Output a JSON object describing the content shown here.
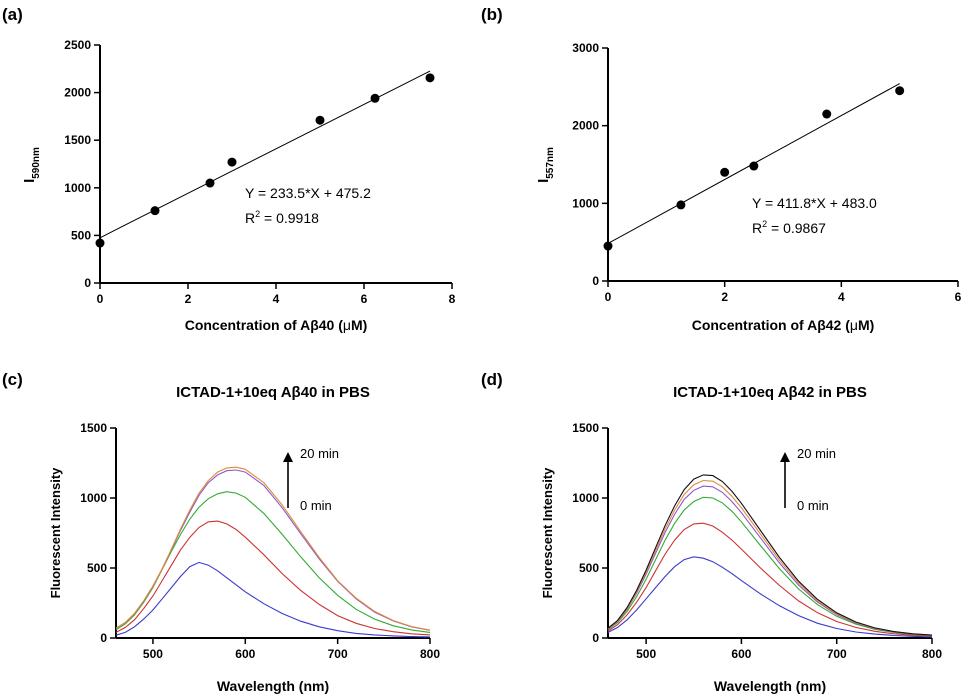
{
  "chart_data": [
    {
      "panel": "(a)",
      "type": "scatter",
      "title": "",
      "xlabel_prefix": "Concentration of Aβ40 (",
      "xlabel_mu": "μ",
      "xlabel_suffix": "M)",
      "ylabel_main": "I",
      "ylabel_sub": "590nm",
      "xlim": [
        0,
        8
      ],
      "ylim": [
        0,
        2500
      ],
      "xticks": [
        0,
        2,
        4,
        6,
        8
      ],
      "yticks": [
        0,
        500,
        1000,
        1500,
        2000,
        2500
      ],
      "points": [
        [
          0,
          420
        ],
        [
          1.25,
          760
        ],
        [
          2.5,
          1050
        ],
        [
          3,
          1270
        ],
        [
          5,
          1710
        ],
        [
          6.25,
          1940
        ],
        [
          7.5,
          2155
        ]
      ],
      "fit": {
        "slope": 233.5,
        "intercept": 475.2,
        "x_range": [
          0,
          7.5
        ]
      },
      "equation": "Y = 233.5*X + 475.2",
      "r2_prefix": "R",
      "r2_sup": "2",
      "r2_value": " = 0.9918",
      "colors": {
        "line": "#000000",
        "points": "#000000"
      }
    },
    {
      "panel": "(b)",
      "type": "scatter",
      "title": "",
      "xlabel_prefix": "Concentration of Aβ42 (",
      "xlabel_mu": "μ",
      "xlabel_suffix": "M)",
      "ylabel_main": "I",
      "ylabel_sub": "557nm",
      "xlim": [
        0,
        6
      ],
      "ylim": [
        0,
        3000
      ],
      "xticks": [
        0,
        2,
        4,
        6
      ],
      "yticks": [
        0,
        1000,
        2000,
        3000
      ],
      "points": [
        [
          0,
          450
        ],
        [
          1.25,
          980
        ],
        [
          2,
          1400
        ],
        [
          2.5,
          1480
        ],
        [
          3.75,
          2150
        ],
        [
          5,
          2450
        ]
      ],
      "fit": {
        "slope": 411.8,
        "intercept": 483.0,
        "x_range": [
          0,
          5
        ]
      },
      "equation": "Y = 411.8*X + 483.0",
      "r2_prefix": "R",
      "r2_sup": "2",
      "r2_value": " = 0.9867",
      "colors": {
        "line": "#000000",
        "points": "#000000"
      }
    },
    {
      "panel": "(c)",
      "type": "line",
      "title": "ICTAD-1+10eq Aβ40 in PBS",
      "xlabel": "Wavelength (nm)",
      "ylabel": "Fluorescent Intensity",
      "xlim": [
        460,
        800
      ],
      "ylim": [
        0,
        1500
      ],
      "xticks": [
        500,
        600,
        700,
        800
      ],
      "yticks": [
        0,
        500,
        1000,
        1500
      ],
      "arrow_top_label": "20 min",
      "arrow_bottom_label": "0 min",
      "series": [
        {
          "color": "#3a3acc",
          "x": [
            460,
            470,
            480,
            490,
            500,
            510,
            520,
            530,
            540,
            550,
            560,
            570,
            580,
            590,
            600,
            620,
            640,
            660,
            680,
            700,
            720,
            740,
            760,
            780,
            800
          ],
          "values": [
            20,
            40,
            80,
            135,
            200,
            280,
            360,
            440,
            510,
            540,
            520,
            480,
            430,
            380,
            330,
            245,
            175,
            120,
            80,
            52,
            33,
            22,
            15,
            10,
            8
          ]
        },
        {
          "color": "#cc3333",
          "x": [
            460,
            470,
            480,
            490,
            500,
            510,
            520,
            530,
            540,
            550,
            560,
            570,
            580,
            590,
            600,
            620,
            640,
            660,
            680,
            700,
            720,
            740,
            760,
            780,
            800
          ],
          "values": [
            40,
            75,
            130,
            210,
            300,
            410,
            520,
            630,
            720,
            790,
            830,
            835,
            815,
            775,
            720,
            595,
            460,
            340,
            240,
            160,
            105,
            68,
            45,
            30,
            22
          ]
        },
        {
          "color": "#33aa33",
          "x": [
            460,
            470,
            480,
            490,
            500,
            510,
            520,
            530,
            540,
            550,
            560,
            570,
            580,
            590,
            600,
            620,
            640,
            660,
            680,
            700,
            720,
            740,
            760,
            780,
            800
          ],
          "values": [
            60,
            100,
            165,
            255,
            360,
            490,
            620,
            740,
            850,
            935,
            995,
            1030,
            1045,
            1035,
            1005,
            890,
            740,
            580,
            430,
            305,
            205,
            135,
            88,
            58,
            40
          ]
        },
        {
          "color": "#8a5acd",
          "x": [
            460,
            470,
            480,
            490,
            500,
            510,
            520,
            530,
            540,
            550,
            560,
            570,
            580,
            590,
            600,
            620,
            640,
            660,
            680,
            700,
            720,
            740,
            760,
            780,
            800
          ],
          "values": [
            70,
            110,
            175,
            265,
            370,
            495,
            630,
            770,
            900,
            1020,
            1110,
            1165,
            1195,
            1200,
            1185,
            1090,
            930,
            745,
            565,
            405,
            280,
            185,
            122,
            80,
            55
          ]
        },
        {
          "color": "#e08a3a",
          "x": [
            460,
            470,
            480,
            490,
            500,
            510,
            520,
            530,
            540,
            550,
            560,
            570,
            580,
            590,
            600,
            620,
            640,
            660,
            680,
            700,
            720,
            740,
            760,
            780,
            800
          ],
          "values": [
            70,
            110,
            175,
            265,
            370,
            495,
            635,
            780,
            915,
            1035,
            1125,
            1185,
            1215,
            1220,
            1205,
            1110,
            950,
            760,
            575,
            410,
            285,
            190,
            125,
            82,
            56
          ]
        }
      ]
    },
    {
      "panel": "(d)",
      "type": "line",
      "title": "ICTAD-1+10eq Aβ42 in PBS",
      "xlabel": "Wavelength (nm)",
      "ylabel": "Fluorescent Intensity",
      "xlim": [
        460,
        800
      ],
      "ylim": [
        0,
        1500
      ],
      "xticks": [
        500,
        600,
        700,
        800
      ],
      "yticks": [
        0,
        500,
        1000,
        1500
      ],
      "arrow_top_label": "20 min",
      "arrow_bottom_label": "0 min",
      "series": [
        {
          "color": "#3a3acc",
          "x": [
            460,
            470,
            480,
            490,
            500,
            510,
            520,
            530,
            540,
            550,
            560,
            570,
            580,
            590,
            600,
            620,
            640,
            660,
            680,
            700,
            720,
            740,
            760,
            780,
            800
          ],
          "values": [
            40,
            75,
            130,
            200,
            280,
            360,
            440,
            510,
            560,
            580,
            570,
            545,
            505,
            460,
            410,
            315,
            230,
            160,
            105,
            68,
            43,
            28,
            18,
            12,
            8
          ]
        },
        {
          "color": "#cc3333",
          "x": [
            460,
            470,
            480,
            490,
            500,
            510,
            520,
            530,
            540,
            550,
            560,
            570,
            580,
            590,
            600,
            620,
            640,
            660,
            680,
            700,
            720,
            740,
            760,
            780,
            800
          ],
          "values": [
            50,
            95,
            165,
            255,
            360,
            480,
            600,
            700,
            775,
            815,
            820,
            800,
            755,
            700,
            635,
            500,
            375,
            265,
            180,
            118,
            76,
            48,
            30,
            20,
            14
          ]
        },
        {
          "color": "#33aa33",
          "x": [
            460,
            470,
            480,
            490,
            500,
            510,
            520,
            530,
            540,
            550,
            560,
            570,
            580,
            590,
            600,
            620,
            640,
            660,
            680,
            700,
            720,
            740,
            760,
            780,
            800
          ],
          "values": [
            60,
            110,
            190,
            295,
            420,
            560,
            700,
            820,
            915,
            975,
            1005,
            1000,
            965,
            905,
            830,
            660,
            495,
            350,
            238,
            155,
            99,
            62,
            40,
            26,
            18
          ]
        },
        {
          "color": "#8a5acd",
          "x": [
            460,
            470,
            480,
            490,
            500,
            510,
            520,
            530,
            540,
            550,
            560,
            570,
            580,
            590,
            600,
            620,
            640,
            660,
            680,
            700,
            720,
            740,
            760,
            780,
            800
          ],
          "values": [
            65,
            118,
            205,
            320,
            455,
            605,
            755,
            885,
            990,
            1055,
            1085,
            1080,
            1040,
            975,
            895,
            715,
            535,
            378,
            256,
            167,
            106,
            67,
            43,
            28,
            19
          ]
        },
        {
          "color": "#e08a3a",
          "x": [
            460,
            470,
            480,
            490,
            500,
            510,
            520,
            530,
            540,
            550,
            560,
            570,
            580,
            590,
            600,
            620,
            640,
            660,
            680,
            700,
            720,
            740,
            760,
            780,
            800
          ],
          "values": [
            68,
            122,
            212,
            330,
            470,
            625,
            780,
            915,
            1025,
            1095,
            1125,
            1120,
            1080,
            1012,
            930,
            742,
            555,
            392,
            265,
            173,
            110,
            70,
            45,
            29,
            20
          ]
        },
        {
          "color": "#111111",
          "x": [
            460,
            470,
            480,
            490,
            500,
            510,
            520,
            530,
            540,
            550,
            560,
            570,
            580,
            590,
            600,
            620,
            640,
            660,
            680,
            700,
            720,
            740,
            760,
            780,
            800
          ],
          "values": [
            70,
            125,
            218,
            340,
            485,
            645,
            805,
            945,
            1060,
            1135,
            1165,
            1160,
            1118,
            1048,
            962,
            768,
            575,
            406,
            275,
            180,
            114,
            72,
            46,
            30,
            21
          ]
        }
      ]
    }
  ]
}
